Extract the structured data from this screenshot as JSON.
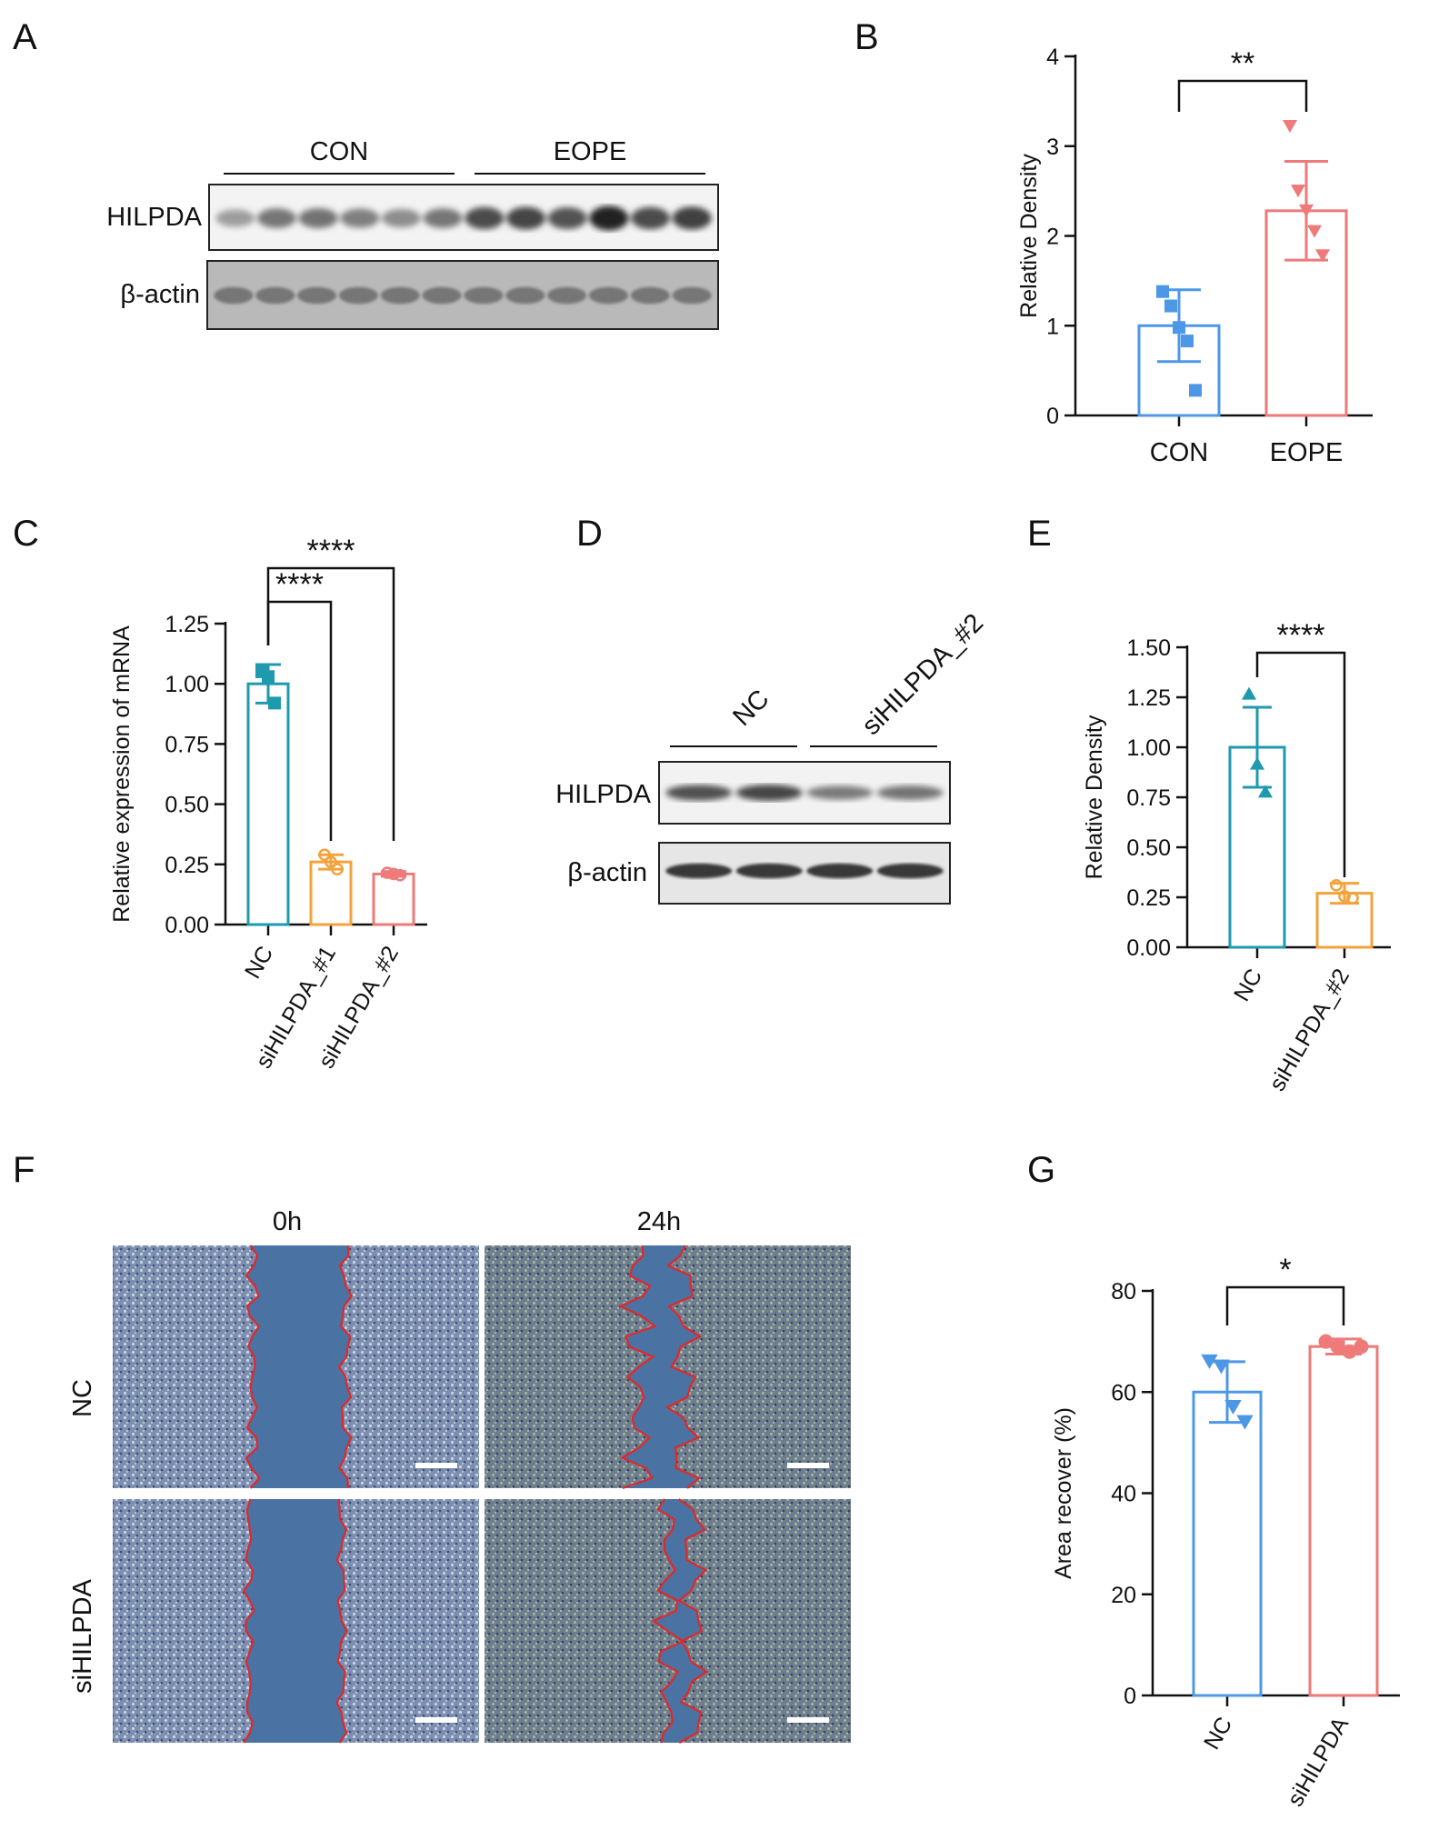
{
  "panels": {
    "A": {
      "label": "A",
      "groups": [
        "CON",
        "EOPE"
      ],
      "rows": [
        "HILPDA",
        "β-actin"
      ],
      "lanes": 12,
      "band_intensity": [
        0.3,
        0.5,
        0.52,
        0.45,
        0.38,
        0.5,
        0.72,
        0.75,
        0.68,
        0.92,
        0.72,
        0.78
      ]
    },
    "D": {
      "label": "D",
      "groups": [
        "NC",
        "siHILPDA_#2"
      ],
      "rows": [
        "HILPDA",
        "β-actin"
      ],
      "lanes": 4,
      "band_intensity": [
        0.7,
        0.75,
        0.48,
        0.52
      ]
    },
    "F": {
      "label": "F",
      "columns": [
        "0h",
        "24h"
      ],
      "rows": [
        "NC",
        "siHILPDA"
      ],
      "colors": {
        "wound_edge": "#e0282a",
        "cells": "#6f83a6",
        "gap": "#4a73a3",
        "scale_bar": "#ffffff"
      }
    },
    "B": {
      "label": "B"
    },
    "C": {
      "label": "C"
    },
    "E": {
      "label": "E"
    },
    "G": {
      "label": "G"
    }
  },
  "chart_data": [
    {
      "panel": "B",
      "type": "bar",
      "categories": [
        "CON",
        "EOPE"
      ],
      "values": [
        1.0,
        2.28
      ],
      "sd": [
        0.4,
        0.55
      ],
      "points": [
        [
          1.38,
          1.22,
          0.98,
          0.83,
          0.28
        ],
        [
          3.22,
          2.5,
          2.28,
          2.05,
          1.78
        ]
      ],
      "marker": [
        "square",
        "triangle-down"
      ],
      "colors": [
        "#4c98e6",
        "#ee7a7a"
      ],
      "ylabel": "Relative Density",
      "ylim": [
        0,
        4
      ],
      "yticks": [
        "0",
        "1",
        "2",
        "3",
        "4"
      ],
      "significance": [
        {
          "between": [
            0,
            1
          ],
          "label": "**"
        }
      ]
    },
    {
      "panel": "C",
      "type": "bar",
      "categories": [
        "NC",
        "siHILPDA_#1",
        "siHILPDA_#2"
      ],
      "values": [
        1.0,
        0.26,
        0.21
      ],
      "sd": [
        0.08,
        0.03,
        0.01
      ],
      "points": [
        [
          1.05,
          1.03,
          0.92
        ],
        [
          0.29,
          0.26,
          0.23
        ],
        [
          0.215,
          0.21,
          0.205
        ]
      ],
      "marker": [
        "square",
        "circle-open",
        "circle-open"
      ],
      "colors": [
        "#1e9aae",
        "#f4a23c",
        "#ee7a7a"
      ],
      "ylabel": "Relative expression of mRNA",
      "ylim": [
        0,
        1.25
      ],
      "yticks": [
        "0.00",
        "0.25",
        "0.50",
        "0.75",
        "1.00",
        "1.25"
      ],
      "significance": [
        {
          "between": [
            0,
            1
          ],
          "label": "****"
        },
        {
          "between": [
            0,
            2
          ],
          "label": "****"
        }
      ]
    },
    {
      "panel": "E",
      "type": "bar",
      "categories": [
        "NC",
        "siHILPDA_#2"
      ],
      "values": [
        1.0,
        0.27
      ],
      "sd": [
        0.2,
        0.05
      ],
      "points": [
        [
          1.27,
          0.92,
          0.78
        ],
        [
          0.31,
          0.255,
          0.245
        ]
      ],
      "marker": [
        "triangle-up",
        "circle-open"
      ],
      "colors": [
        "#1e9aae",
        "#f4a23c"
      ],
      "ylabel": "Relative Density",
      "ylim": [
        0,
        1.5
      ],
      "yticks": [
        "0.00",
        "0.25",
        "0.50",
        "0.75",
        "1.00",
        "1.25",
        "1.50"
      ],
      "significance": [
        {
          "between": [
            0,
            1
          ],
          "label": "****"
        }
      ]
    },
    {
      "panel": "G",
      "type": "bar",
      "categories": [
        "NC",
        "siHILPDA"
      ],
      "values": [
        60,
        69
      ],
      "sd": [
        6,
        1.5
      ],
      "points": [
        [
          66,
          65,
          57,
          54
        ],
        [
          70,
          69,
          68,
          69
        ]
      ],
      "marker": [
        "triangle-down",
        "circle"
      ],
      "colors": [
        "#4c98e6",
        "#ee7a7a"
      ],
      "ylabel": "Area recover (%)",
      "ylim": [
        0,
        80
      ],
      "yticks": [
        "0",
        "20",
        "40",
        "60",
        "80"
      ],
      "significance": [
        {
          "between": [
            0,
            1
          ],
          "label": "*"
        }
      ]
    }
  ]
}
